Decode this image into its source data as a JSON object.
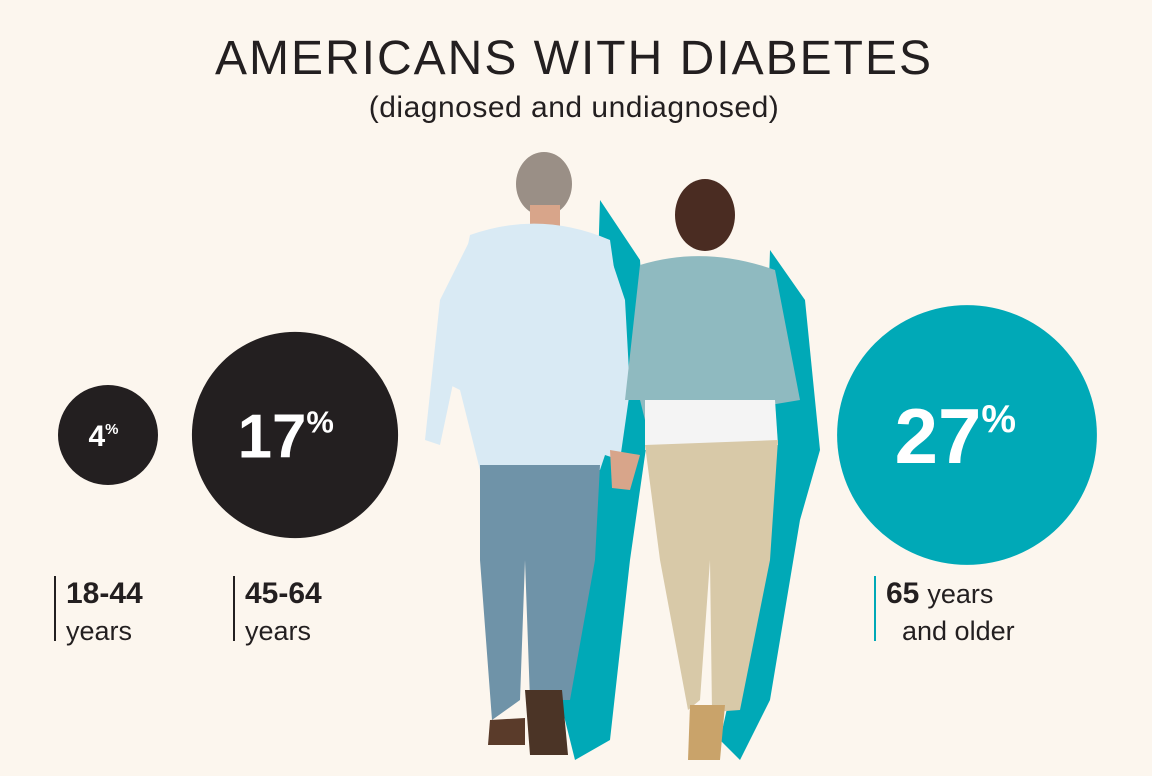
{
  "chart_data": {
    "type": "bubble",
    "title": "AMERICANS WITH DIABETES",
    "subtitle": "(diagnosed and undiagnosed)",
    "unit": "%",
    "categories": [
      "18-44",
      "45-64",
      "65"
    ],
    "category_suffixes": [
      "years",
      "years",
      "years and older"
    ],
    "values": [
      4,
      17,
      27
    ],
    "colors": [
      "#231f20",
      "#231f20",
      "#00a9b7"
    ]
  }
}
